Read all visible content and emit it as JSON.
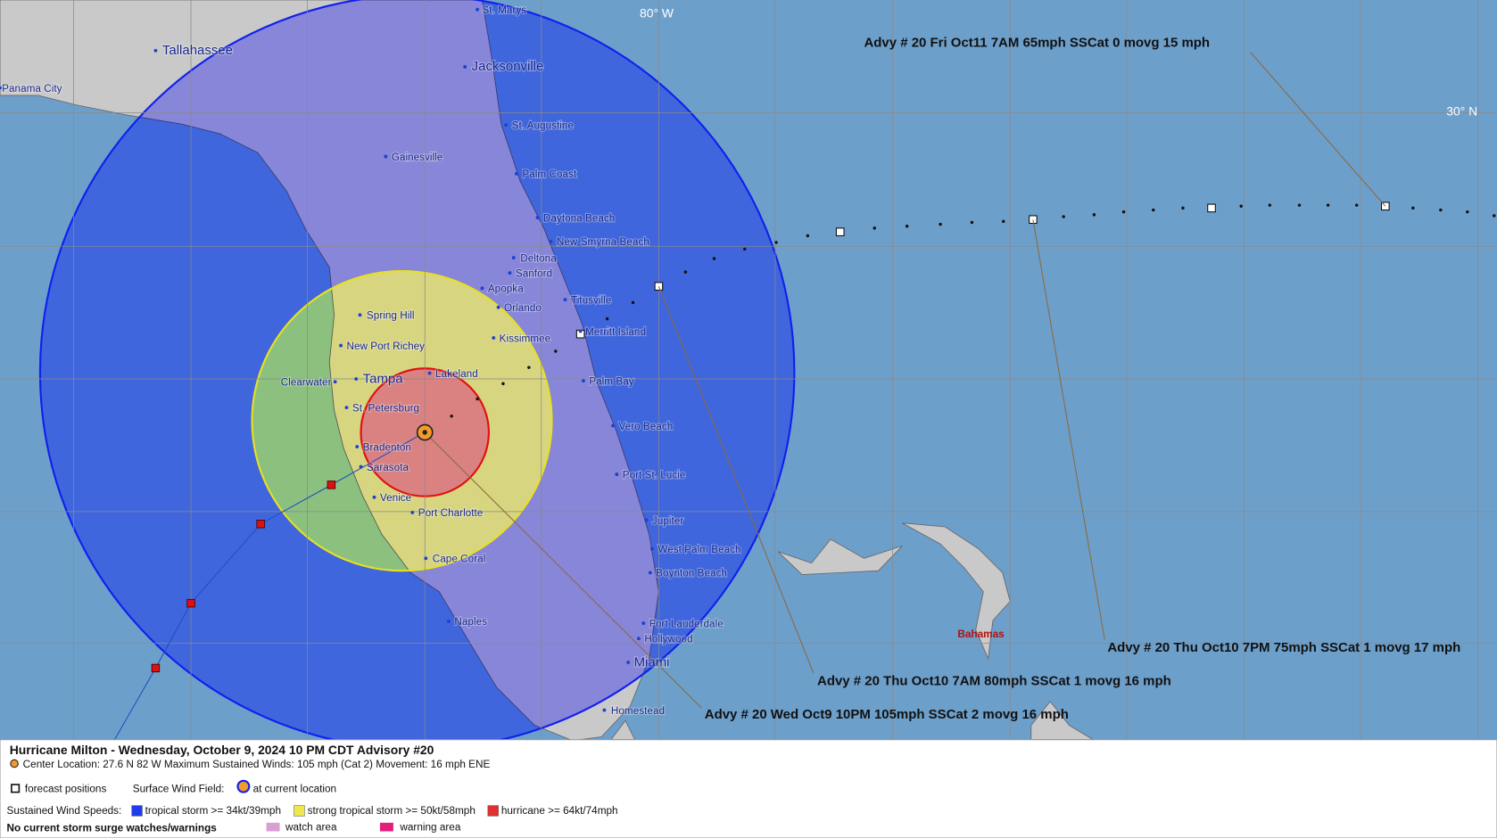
{
  "map": {
    "grid_labels": [
      "80° W",
      "30° N"
    ],
    "region_label": "Bahamas",
    "cities": [
      "Tallahassee",
      "St. Marys",
      "Jacksonville",
      "Panama City",
      "St. Augustine",
      "Gainesville",
      "Palm Coast",
      "Daytona Beach",
      "New Smyrna Beach",
      "Deltona",
      "Sanford",
      "Apopka",
      "Orlando",
      "Titusville",
      "Spring Hill",
      "Merritt Island",
      "Kissimmee",
      "New Port Richey",
      "Palm Bay",
      "Lakeland",
      "Clearwater",
      "Tampa",
      "St. Petersburg",
      "Vero Beach",
      "Bradenton",
      "Sarasota",
      "Port St. Lucie",
      "Venice",
      "Port Charlotte",
      "Jupiter",
      "West Palm Beach",
      "Cape Coral",
      "Boynton Beach",
      "Naples",
      "Fort Lauderdale",
      "Hollywood",
      "Miami",
      "Homestead"
    ],
    "advisories": [
      "Advy # 20 Fri Oct11 7AM  65mph SSCat 0 movg 15 mph",
      "Advy # 20 Thu Oct10 7PM  75mph SSCat 1 movg 17 mph",
      "Advy # 20 Thu Oct10 7AM  80mph SSCat 1 movg 16 mph",
      "Advy # 20 Wed Oct9 10PM  105mph SSCat 2 movg 16 mph"
    ]
  },
  "legend": {
    "title": "Hurricane Milton  -  Wednesday, October 9, 2024  10 PM CDT   Advisory #20",
    "info": "Center Location: 27.6 N  82 W   Maximum Sustained Winds: 105 mph (Cat 2) Movement: 16 mph ENE",
    "forecast": "forecast positions",
    "wind_field": "Surface Wind Field:",
    "current": "at current location",
    "speeds_label": "Sustained Wind Speeds:",
    "speeds": [
      "tropical storm >= 34kt/39mph",
      "strong tropical storm >= 50kt/58mph",
      "hurricane >= 64kt/74mph"
    ],
    "surge": "No current storm surge watches/warnings",
    "watch": "watch area",
    "warning": "warning area"
  }
}
